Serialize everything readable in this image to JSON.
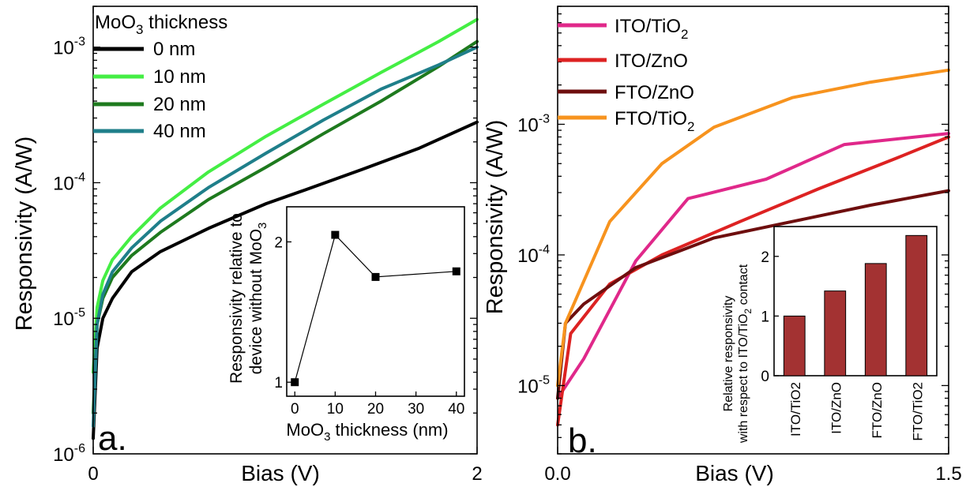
{
  "chart_data": [
    {
      "type": "line",
      "panel_label": "a.",
      "xlabel": "Bias (V)",
      "ylabel": "Responsivity (A/W)",
      "xlim": [
        0,
        2
      ],
      "ylim": [
        1e-06,
        0.002
      ],
      "yscale": "log",
      "x_ticks": [
        "0",
        "2"
      ],
      "y_ticks": [
        {
          "value": 1e-06,
          "base": "10",
          "exp": "-6"
        },
        {
          "value": 1e-05,
          "base": "10",
          "exp": "-5"
        },
        {
          "value": 0.0001,
          "base": "10",
          "exp": "-4"
        },
        {
          "value": 0.001,
          "base": "10",
          "exp": "-3"
        }
      ],
      "legend_title": {
        "pre": "MoO",
        "sub": "3",
        "post": " thickness"
      },
      "legend_position": "top-left",
      "series": [
        {
          "name": "0 nm",
          "color": "#000000",
          "x": [
            0,
            0.02,
            0.05,
            0.1,
            0.2,
            0.35,
            0.6,
            0.9,
            1.1,
            1.4,
            1.7,
            2.0
          ],
          "y": [
            1.3e-06,
            6e-06,
            1e-05,
            1.4e-05,
            2.2e-05,
            3.1e-05,
            4.6e-05,
            7e-05,
            8.8e-05,
            0.000125,
            0.00018,
            0.00028
          ]
        },
        {
          "name": "10 nm",
          "color": "#44ee44",
          "x": [
            0,
            0.02,
            0.05,
            0.1,
            0.2,
            0.35,
            0.6,
            0.9,
            1.2,
            1.5,
            1.8,
            2.0
          ],
          "y": [
            4e-06,
            1.2e-05,
            1.9e-05,
            2.7e-05,
            4e-05,
            6.5e-05,
            0.00012,
            0.00022,
            0.00038,
            0.00065,
            0.0011,
            0.0016
          ]
        },
        {
          "name": "20 nm",
          "color": "#1e7a1e",
          "x": [
            0,
            0.02,
            0.05,
            0.1,
            0.2,
            0.35,
            0.6,
            0.9,
            1.2,
            1.5,
            1.8,
            2.0
          ],
          "y": [
            2e-06,
            9e-06,
            1.4e-05,
            2e-05,
            2.9e-05,
            4.3e-05,
            7.5e-05,
            0.00013,
            0.00023,
            0.0004,
            0.00072,
            0.0011
          ]
        },
        {
          "name": "40 nm",
          "color": "#1f7f8a",
          "x": [
            0,
            0.02,
            0.05,
            0.1,
            0.2,
            0.35,
            0.6,
            0.9,
            1.2,
            1.5,
            1.8,
            2.0
          ],
          "y": [
            1.6e-06,
            9e-06,
            1.5e-05,
            2.2e-05,
            3.3e-05,
            5.2e-05,
            9.2e-05,
            0.000165,
            0.00029,
            0.00049,
            0.00074,
            0.001
          ]
        }
      ],
      "inset": {
        "type": "line+scatter",
        "ylabel_line1": "Responsivity relative to",
        "ylabel_line2": {
          "pre": "device without MoO",
          "sub": "3"
        },
        "xlabel": {
          "pre": "MoO",
          "sub": "3",
          "post": " thickness (nm)"
        },
        "xlim": [
          -2,
          42
        ],
        "ylim": [
          0.9,
          2.25
        ],
        "x_ticks": [
          "0",
          "10",
          "20",
          "30",
          "40"
        ],
        "y_ticks": [
          "1",
          "2"
        ],
        "x": [
          0,
          10,
          20,
          40
        ],
        "y": [
          1.0,
          2.05,
          1.75,
          1.79
        ]
      }
    },
    {
      "type": "line",
      "panel_label": "b.",
      "xlabel": "Bias (V)",
      "ylabel": "Responsivity (A/W)",
      "xlim": [
        0,
        1.5
      ],
      "ylim": [
        3e-06,
        0.008
      ],
      "yscale": "log",
      "x_ticks": [
        "0.0",
        "1.5"
      ],
      "y_ticks": [
        {
          "value": 1e-05,
          "base": "10",
          "exp": "-5"
        },
        {
          "value": 0.0001,
          "base": "10",
          "exp": "-4"
        },
        {
          "value": 0.001,
          "base": "10",
          "exp": "-3"
        }
      ],
      "legend_position": "top-left",
      "series": [
        {
          "name": "ITO/TiO",
          "sub": "2",
          "color": "#e0288a",
          "x": [
            0,
            0.1,
            0.3,
            0.5,
            0.8,
            1.1,
            1.5
          ],
          "y": [
            8e-06,
            1.6e-05,
            9e-05,
            0.00027,
            0.00038,
            0.0007,
            0.00085
          ]
        },
        {
          "name": "ITO/ZnO",
          "sub": "",
          "color": "#dd2222",
          "x": [
            0,
            0.05,
            0.2,
            0.4,
            0.7,
            1.0,
            1.3,
            1.5
          ],
          "y": [
            5e-06,
            2.5e-05,
            6e-05,
            0.0001,
            0.00018,
            0.00032,
            0.00055,
            0.0008
          ]
        },
        {
          "name": "FTO/ZnO",
          "sub": "",
          "color": "#6e0e0e",
          "x": [
            0,
            0.03,
            0.1,
            0.3,
            0.6,
            0.9,
            1.2,
            1.5
          ],
          "y": [
            8e-06,
            3e-05,
            4.2e-05,
            8e-05,
            0.000135,
            0.00018,
            0.00024,
            0.00031
          ]
        },
        {
          "name": "FTO/TiO",
          "sub": "2",
          "color": "#f7931e",
          "x": [
            0,
            0.03,
            0.2,
            0.4,
            0.6,
            0.9,
            1.2,
            1.5
          ],
          "y": [
            1e-05,
            3e-05,
            0.00018,
            0.0005,
            0.00095,
            0.0016,
            0.0021,
            0.0026
          ]
        }
      ],
      "inset": {
        "type": "bar",
        "bar_color": "#a33232",
        "ylabel_line1": "Relative responsivity",
        "ylabel_line2": {
          "pre": "with respect to ITO/TiO",
          "sub": "2",
          "post": " contact"
        },
        "categories": [
          "ITO/TiO2",
          "ITO/ZnO",
          "FTO/ZnO",
          "FTO/TiO2"
        ],
        "values": [
          1.0,
          1.42,
          1.88,
          2.35
        ],
        "ylim": [
          0,
          2.5
        ],
        "y_ticks": [
          "0",
          "1",
          "2"
        ]
      }
    }
  ]
}
